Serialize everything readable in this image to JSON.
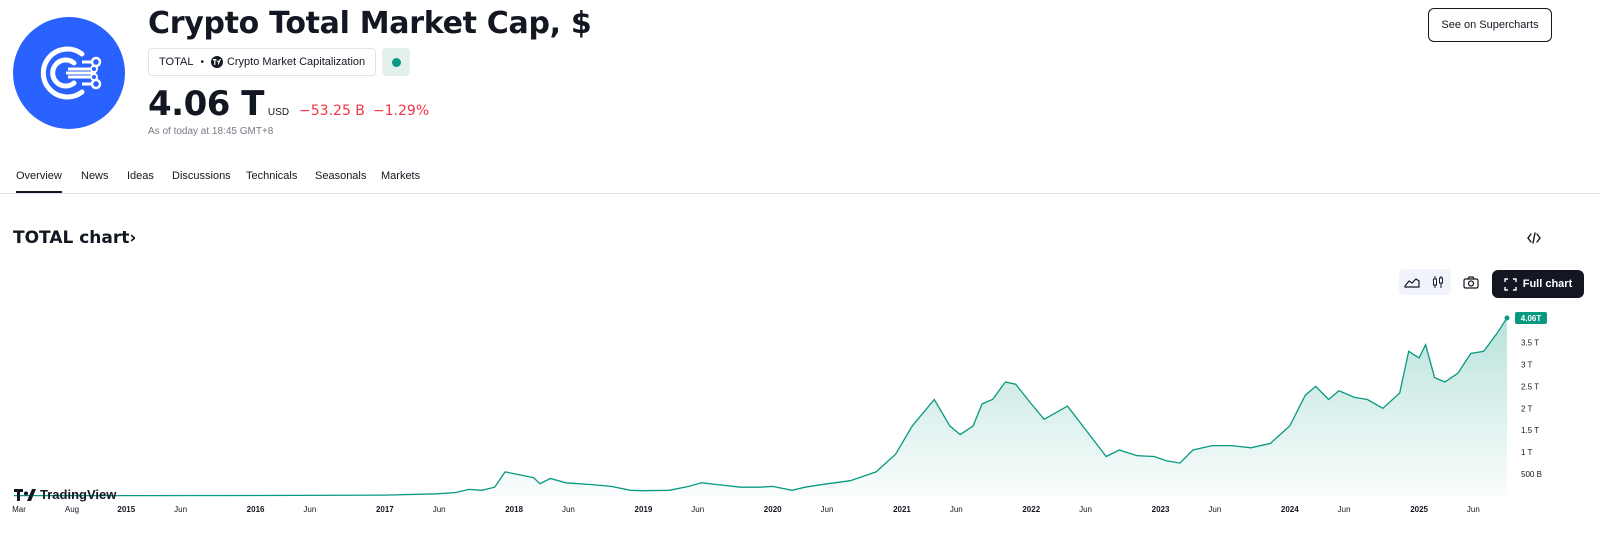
{
  "header": {
    "title": "Crypto Total Market Cap, $",
    "symbol": "TOTAL",
    "source": "Crypto Market Capitalization",
    "price": "4.06 T",
    "currency": "USD",
    "change_abs": "−53.25 B",
    "change_pct": "−1.29%",
    "as_of": "As of today at 18:45 GMT+8",
    "supercharts_label": "See on Supercharts",
    "logo_icon": "network-node-icon",
    "status_color": "#089981"
  },
  "tabs": [
    {
      "label": "Overview",
      "active": true
    },
    {
      "label": "News",
      "active": false
    },
    {
      "label": "Ideas",
      "active": false
    },
    {
      "label": "Discussions",
      "active": false
    },
    {
      "label": "Technicals",
      "active": false
    },
    {
      "label": "Seasonals",
      "active": false
    },
    {
      "label": "Markets",
      "active": false
    }
  ],
  "chart_section": {
    "heading": "TOTAL chart",
    "full_chart_label": "Full chart",
    "watermark": "TradingView"
  },
  "chart_data": {
    "type": "area",
    "line_color": "#089981",
    "last_value_label": "4.06T",
    "x_ticks": [
      {
        "label": "Mar",
        "t": 2014.17,
        "bold": false
      },
      {
        "label": "Aug",
        "t": 2014.58,
        "bold": false
      },
      {
        "label": "2015",
        "t": 2015.0,
        "bold": true
      },
      {
        "label": "Jun",
        "t": 2015.42,
        "bold": false
      },
      {
        "label": "2016",
        "t": 2016.0,
        "bold": true
      },
      {
        "label": "Jun",
        "t": 2016.42,
        "bold": false
      },
      {
        "label": "2017",
        "t": 2017.0,
        "bold": true
      },
      {
        "label": "Jun",
        "t": 2017.42,
        "bold": false
      },
      {
        "label": "2018",
        "t": 2018.0,
        "bold": true
      },
      {
        "label": "Jun",
        "t": 2018.42,
        "bold": false
      },
      {
        "label": "2019",
        "t": 2019.0,
        "bold": true
      },
      {
        "label": "Jun",
        "t": 2019.42,
        "bold": false
      },
      {
        "label": "2020",
        "t": 2020.0,
        "bold": true
      },
      {
        "label": "Jun",
        "t": 2020.42,
        "bold": false
      },
      {
        "label": "2021",
        "t": 2021.0,
        "bold": true
      },
      {
        "label": "Jun",
        "t": 2021.42,
        "bold": false
      },
      {
        "label": "2022",
        "t": 2022.0,
        "bold": true
      },
      {
        "label": "Jun",
        "t": 2022.42,
        "bold": false
      },
      {
        "label": "2023",
        "t": 2023.0,
        "bold": true
      },
      {
        "label": "Jun",
        "t": 2023.42,
        "bold": false
      },
      {
        "label": "2024",
        "t": 2024.0,
        "bold": true
      },
      {
        "label": "Jun",
        "t": 2024.42,
        "bold": false
      },
      {
        "label": "2025",
        "t": 2025.0,
        "bold": true
      },
      {
        "label": "Jun",
        "t": 2025.42,
        "bold": false
      }
    ],
    "y_ticks": [
      {
        "label": "500 B",
        "v": 0.5
      },
      {
        "label": "1 T",
        "v": 1.0
      },
      {
        "label": "1.5 T",
        "v": 1.5
      },
      {
        "label": "2 T",
        "v": 2.0
      },
      {
        "label": "2.5 T",
        "v": 2.5
      },
      {
        "label": "3 T",
        "v": 3.0
      },
      {
        "label": "3.5 T",
        "v": 3.5
      }
    ],
    "ylim": [
      0,
      4.06
    ],
    "series": [
      {
        "points": [
          [
            2014.0,
            0.01
          ],
          [
            2015.0,
            0.01
          ],
          [
            2016.0,
            0.012
          ],
          [
            2017.0,
            0.02
          ],
          [
            2017.4,
            0.05
          ],
          [
            2017.55,
            0.08
          ],
          [
            2017.65,
            0.15
          ],
          [
            2017.75,
            0.13
          ],
          [
            2017.85,
            0.2
          ],
          [
            2017.93,
            0.55
          ],
          [
            2018.05,
            0.48
          ],
          [
            2018.15,
            0.42
          ],
          [
            2018.2,
            0.28
          ],
          [
            2018.28,
            0.4
          ],
          [
            2018.4,
            0.3
          ],
          [
            2018.5,
            0.28
          ],
          [
            2018.6,
            0.26
          ],
          [
            2018.75,
            0.22
          ],
          [
            2018.9,
            0.13
          ],
          [
            2019.0,
            0.12
          ],
          [
            2019.2,
            0.13
          ],
          [
            2019.35,
            0.22
          ],
          [
            2019.45,
            0.3
          ],
          [
            2019.6,
            0.25
          ],
          [
            2019.75,
            0.2
          ],
          [
            2019.9,
            0.2
          ],
          [
            2020.0,
            0.22
          ],
          [
            2020.15,
            0.13
          ],
          [
            2020.25,
            0.2
          ],
          [
            2020.4,
            0.27
          ],
          [
            2020.6,
            0.35
          ],
          [
            2020.8,
            0.55
          ],
          [
            2020.95,
            0.95
          ],
          [
            2021.08,
            1.6
          ],
          [
            2021.25,
            2.2
          ],
          [
            2021.37,
            1.6
          ],
          [
            2021.45,
            1.4
          ],
          [
            2021.55,
            1.6
          ],
          [
            2021.62,
            2.1
          ],
          [
            2021.7,
            2.2
          ],
          [
            2021.8,
            2.6
          ],
          [
            2021.88,
            2.55
          ],
          [
            2022.0,
            2.1
          ],
          [
            2022.1,
            1.75
          ],
          [
            2022.28,
            2.05
          ],
          [
            2022.45,
            1.4
          ],
          [
            2022.58,
            0.9
          ],
          [
            2022.68,
            1.05
          ],
          [
            2022.82,
            0.92
          ],
          [
            2022.95,
            0.9
          ],
          [
            2023.05,
            0.8
          ],
          [
            2023.15,
            0.75
          ],
          [
            2023.25,
            1.05
          ],
          [
            2023.4,
            1.15
          ],
          [
            2023.55,
            1.15
          ],
          [
            2023.7,
            1.1
          ],
          [
            2023.85,
            1.2
          ],
          [
            2024.0,
            1.6
          ],
          [
            2024.12,
            2.3
          ],
          [
            2024.2,
            2.5
          ],
          [
            2024.3,
            2.2
          ],
          [
            2024.38,
            2.4
          ],
          [
            2024.5,
            2.25
          ],
          [
            2024.6,
            2.2
          ],
          [
            2024.72,
            2.0
          ],
          [
            2024.85,
            2.35
          ],
          [
            2024.92,
            3.3
          ],
          [
            2025.0,
            3.15
          ],
          [
            2025.05,
            3.45
          ],
          [
            2025.12,
            2.7
          ],
          [
            2025.2,
            2.6
          ],
          [
            2025.3,
            2.8
          ],
          [
            2025.4,
            3.25
          ],
          [
            2025.5,
            3.3
          ],
          [
            2025.6,
            3.7
          ],
          [
            2025.68,
            4.06
          ]
        ]
      }
    ]
  }
}
